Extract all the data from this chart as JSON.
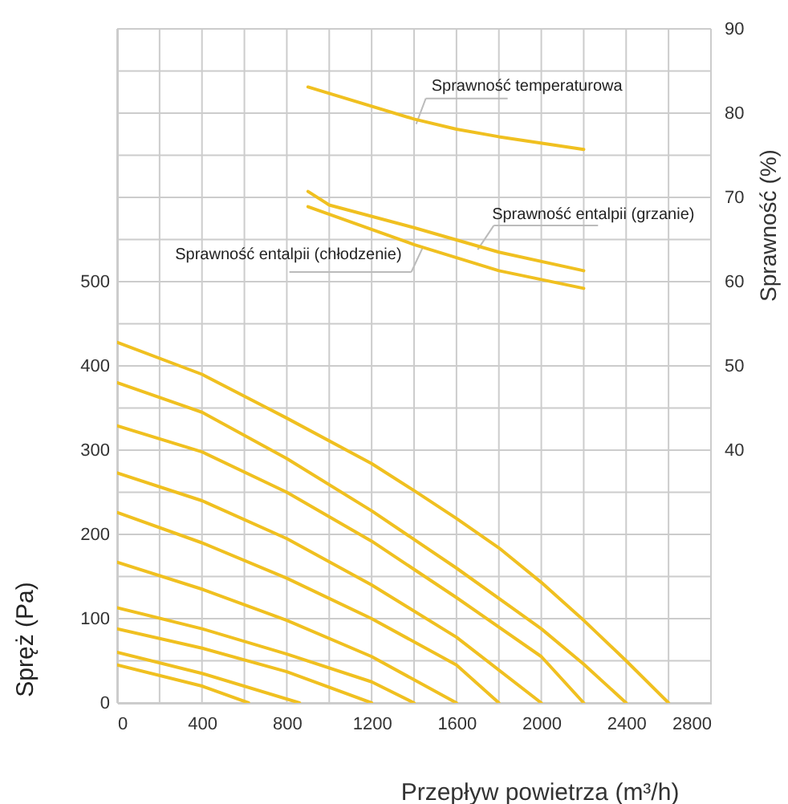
{
  "chart_data": {
    "type": "line",
    "xlabel": "Przepływ powietrza (m³/h)",
    "ylabel": "Spręż (Pa)",
    "y2label": "Sprawność (%)",
    "xlim": [
      0,
      2800
    ],
    "xticks": [
      0,
      {
        "value": 200,
        "label": null
      },
      400,
      {
        "value": 600,
        "label": null
      },
      800,
      {
        "value": 1000,
        "label": null
      },
      1200,
      {
        "value": 1400,
        "label": null
      },
      1600,
      {
        "value": 1800,
        "label": null
      },
      2000,
      {
        "value": 2200,
        "label": null
      },
      2400,
      {
        "value": 2600,
        "label": null
      },
      2800
    ],
    "ylim": [
      0,
      800
    ],
    "yticks": [
      0,
      {
        "value": 50,
        "label": null
      },
      100,
      {
        "value": 150,
        "label": null
      },
      200,
      {
        "value": 250,
        "label": null
      },
      300,
      {
        "value": 350,
        "label": null
      },
      400,
      {
        "value": 450,
        "label": null
      },
      500,
      {
        "value": 550,
        "label": null
      },
      {
        "value": 600,
        "label": null
      },
      {
        "value": 650,
        "label": null
      },
      {
        "value": 700,
        "label": null
      },
      {
        "value": 750,
        "label": null
      },
      {
        "value": 800,
        "label": null
      }
    ],
    "y2lim": [
      10,
      90
    ],
    "y2ticks": [
      40,
      50,
      60,
      70,
      80,
      90
    ],
    "grid": true,
    "series": [
      {
        "color": "#f0c020",
        "x": [
          0,
          400,
          800,
          1200,
          1400,
          1600,
          1800,
          2000,
          2200,
          2400,
          2600
        ],
        "values": [
          428,
          390,
          338,
          284,
          252,
          219,
          184,
          143,
          98,
          50,
          0
        ]
      },
      {
        "color": "#f0c020",
        "x": [
          0,
          400,
          800,
          1200,
          1600,
          2000,
          2200,
          2400
        ],
        "values": [
          380,
          345,
          290,
          228,
          160,
          88,
          46,
          0
        ]
      },
      {
        "color": "#f0c020",
        "x": [
          0,
          400,
          800,
          1200,
          1600,
          2000,
          2200
        ],
        "values": [
          329,
          298,
          250,
          192,
          125,
          55,
          0
        ]
      },
      {
        "color": "#f0c020",
        "x": [
          0,
          400,
          800,
          1200,
          1600,
          2000
        ],
        "values": [
          273,
          240,
          195,
          140,
          78,
          0
        ]
      },
      {
        "color": "#f0c020",
        "x": [
          0,
          400,
          800,
          1200,
          1600,
          1800
        ],
        "values": [
          226,
          190,
          148,
          100,
          45,
          0
        ]
      },
      {
        "color": "#f0c020",
        "x": [
          0,
          400,
          800,
          1200,
          1600
        ],
        "values": [
          167,
          135,
          98,
          55,
          0
        ]
      },
      {
        "color": "#f0c020",
        "x": [
          0,
          400,
          800,
          1200,
          1400
        ],
        "values": [
          113,
          88,
          58,
          25,
          0
        ]
      },
      {
        "color": "#f0c020",
        "x": [
          0,
          400,
          800,
          1200
        ],
        "values": [
          88,
          65,
          37,
          0
        ]
      },
      {
        "color": "#f0c020",
        "x": [
          0,
          400,
          860
        ],
        "values": [
          60,
          35,
          0
        ]
      },
      {
        "color": "#f0c020",
        "x": [
          0,
          400,
          620
        ],
        "values": [
          45,
          20,
          0
        ]
      },
      {
        "color": "#f0c020",
        "axis": "y2",
        "x": [
          900,
          1400,
          1600,
          1800,
          2200
        ],
        "values": [
          83.1,
          79.3,
          78.1,
          77.2,
          75.7
        ]
      },
      {
        "color": "#f0c020",
        "axis": "y2",
        "x": [
          900,
          1000,
          1400,
          1800,
          2200
        ],
        "values": [
          70.7,
          69.1,
          66.4,
          63.5,
          61.3
        ]
      },
      {
        "color": "#f0c020",
        "axis": "y2",
        "x": [
          900,
          1400,
          1800,
          2200
        ],
        "values": [
          68.9,
          64.4,
          61.3,
          59.2
        ]
      }
    ],
    "annotations": [
      {
        "text": "Sprawność temperaturowa",
        "x": 1410,
        "y": 687
      },
      {
        "text": "Sprawność entalpii (grzanie)",
        "x": 1700,
        "y": 538
      },
      {
        "text": "Sprawność entalpii (chłodzenie)",
        "x": 1440,
        "y": 540
      }
    ]
  }
}
